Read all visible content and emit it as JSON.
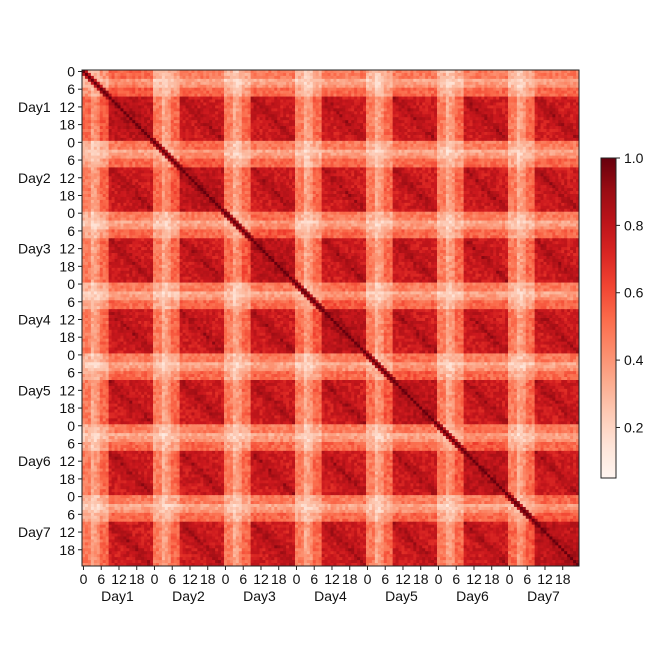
{
  "chart_data": {
    "type": "heatmap",
    "days": [
      "Day1",
      "Day2",
      "Day3",
      "Day4",
      "Day5",
      "Day6",
      "Day7"
    ],
    "hour_ticks": [
      "0",
      "6",
      "12",
      "18"
    ],
    "x_hour_ticks": [
      "0",
      "6",
      "12",
      "18"
    ],
    "hours_per_day": 24,
    "colorbar": {
      "min": 0.05,
      "max": 1.0,
      "ticks": [
        0.2,
        0.4,
        0.6,
        0.8,
        1.0
      ],
      "tick_labels": [
        "0.2",
        "0.4",
        "0.6",
        "0.8",
        "1.0"
      ],
      "colormap": "Reds"
    },
    "value_description_levels": {
      "diagonal": 1.0,
      "daytime_block": 0.75,
      "night_block": 0.45,
      "night_row_minimum": 0.08
    }
  }
}
